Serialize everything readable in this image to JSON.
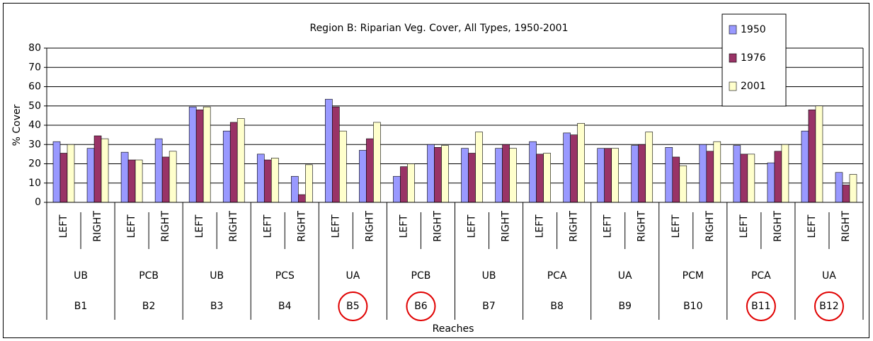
{
  "chart_data": {
    "type": "bar",
    "title": "Region B: Riparian Veg. Cover, All Types, 1950-2001",
    "x_label": "Reaches",
    "y_label": "% Cover",
    "categories": [
      "LEFT",
      "RIGHT",
      "LEFT",
      "RIGHT",
      "LEFT",
      "RIGHT",
      "LEFT",
      "RIGHT",
      "LEFT",
      "RIGHT",
      "LEFT",
      "RIGHT",
      "LEFT",
      "RIGHT",
      "LEFT",
      "RIGHT",
      "LEFT",
      "RIGHT",
      "LEFT",
      "RIGHT",
      "LEFT",
      "RIGHT",
      "LEFT",
      "RIGHT"
    ],
    "groups": [
      {
        "label": "UB",
        "reach": "B1",
        "circled": false
      },
      {
        "label": "PCB",
        "reach": "B2",
        "circled": false
      },
      {
        "label": "UB",
        "reach": "B3",
        "circled": false
      },
      {
        "label": "PCS",
        "reach": "B4",
        "circled": false
      },
      {
        "label": "UA",
        "reach": "B5",
        "circled": true
      },
      {
        "label": "PCB",
        "reach": "B6",
        "circled": true
      },
      {
        "label": "UB",
        "reach": "B7",
        "circled": false
      },
      {
        "label": "PCA",
        "reach": "B8",
        "circled": false
      },
      {
        "label": "UA",
        "reach": "B9",
        "circled": false
      },
      {
        "label": "PCM",
        "reach": "B10",
        "circled": false
      },
      {
        "label": "PCA",
        "reach": "B11",
        "circled": true
      },
      {
        "label": "UA",
        "reach": "B12",
        "circled": true
      }
    ],
    "series": [
      {
        "name": "1950",
        "color": "#9999ff",
        "values": [
          31.5,
          28,
          26,
          33,
          49.5,
          37,
          25,
          13.5,
          53.5,
          27,
          13.5,
          30,
          28,
          28,
          31.5,
          36,
          28,
          29.5,
          28.5,
          30,
          29.5,
          20.5,
          37,
          15.5
        ]
      },
      {
        "name": "1976",
        "color": "#993366",
        "values": [
          25.5,
          34.5,
          22,
          23.5,
          48,
          41.5,
          22,
          4,
          49.5,
          33,
          18.5,
          28.5,
          25.5,
          30,
          25,
          35,
          28,
          30,
          23.5,
          26.5,
          25,
          26.5,
          48,
          9
        ]
      },
      {
        "name": "2001",
        "color": "#ffffcc",
        "values": [
          30,
          33,
          22,
          26.5,
          49.5,
          43.5,
          23,
          19.5,
          37,
          41.5,
          20,
          29.5,
          36.5,
          28,
          25.5,
          41,
          28,
          36.5,
          19,
          31.5,
          25,
          30,
          50,
          14.5
        ]
      }
    ],
    "ylim": [
      0,
      80
    ],
    "yticks": [
      0,
      10,
      20,
      30,
      40,
      50,
      60,
      70,
      80
    ],
    "grid": true,
    "legend": "top-right",
    "highlight_color": "#e00000"
  }
}
